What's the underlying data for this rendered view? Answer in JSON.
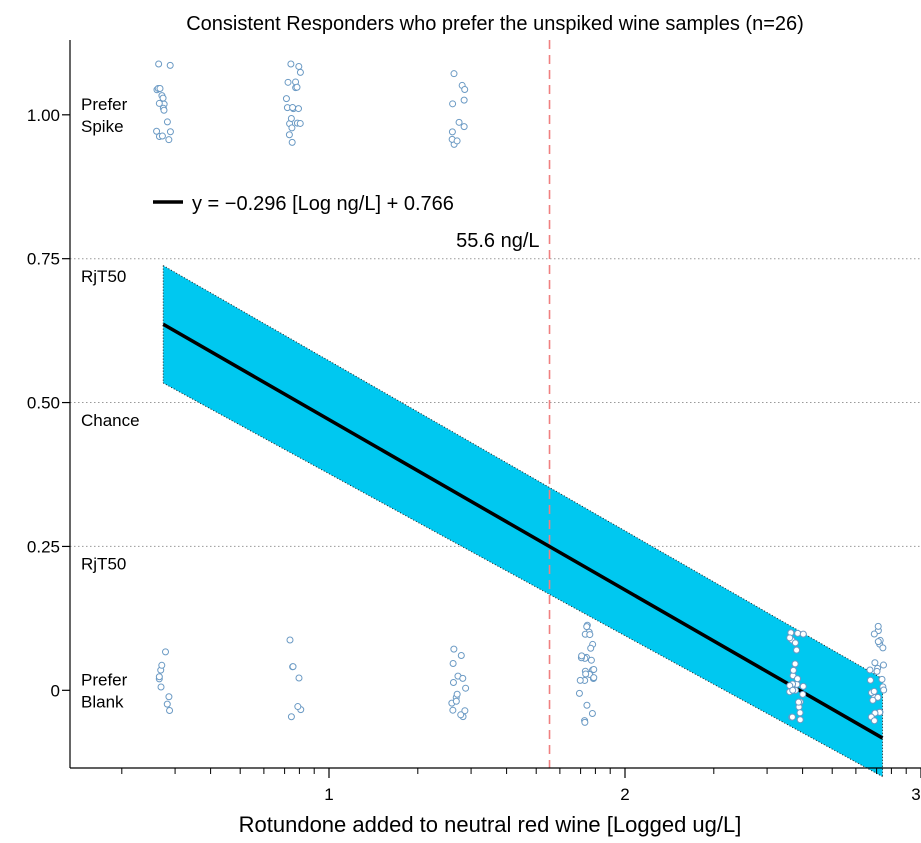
{
  "chart_data": {
    "type": "scatter",
    "title": "Consistent Responders who prefer the unspiked wine samples (n=26)",
    "xlabel": "Rotundone added to neutral red wine [Logged ug/L]",
    "ylabel": "",
    "xlim": [
      0.125,
      3.0
    ],
    "ylim": [
      -0.135,
      1.13
    ],
    "x_ticks": [
      1,
      2,
      3
    ],
    "x_tick_labels": [
      "1",
      "2",
      "3"
    ],
    "y_ticks": [
      1.0,
      0.75,
      0.5,
      0.25,
      0
    ],
    "y_tick_labels": [
      "1.00",
      "0.75",
      "0.50",
      "0.25",
      "0"
    ],
    "gridlines_y": [
      0.75,
      0.5,
      0.25
    ],
    "region_labels": [
      {
        "lines": [
          "Prefer",
          "Spike"
        ],
        "y": 1.0
      },
      {
        "lines": [
          "RjT50"
        ],
        "y": 0.72
      },
      {
        "lines": [
          "Chance"
        ],
        "y": 0.47
      },
      {
        "lines": [
          "RjT50"
        ],
        "y": 0.22
      },
      {
        "lines": [
          "Prefer",
          "Blank"
        ],
        "y": 0.0
      }
    ],
    "regression": {
      "equation": "y = −0.296 [Log ng/L] + 0.766",
      "x": [
        0.44,
        2.87
      ],
      "y": [
        0.636,
        -0.083
      ],
      "ci_upper": [
        0.738,
        0.02
      ],
      "ci_lower": [
        0.534,
        -0.15
      ],
      "line_color": "#000000",
      "band_color": "#00c8f0"
    },
    "threshold": {
      "x": 1.745,
      "label": "55.6 ng/L",
      "color": "#f08080"
    },
    "point_color": "#6b9ac4",
    "point_groups": [
      {
        "x": 0.44,
        "level": 1,
        "n": 17
      },
      {
        "x": 0.44,
        "level": 0,
        "n": 9
      },
      {
        "x": 0.88,
        "level": 1,
        "n": 19
      },
      {
        "x": 0.88,
        "level": 0,
        "n": 7
      },
      {
        "x": 1.44,
        "level": 1,
        "n": 11
      },
      {
        "x": 1.44,
        "level": 0,
        "n": 15
      },
      {
        "x": 1.87,
        "level": 1,
        "n": 0
      },
      {
        "x": 1.87,
        "level": 0,
        "n": 26
      },
      {
        "x": 2.58,
        "level": 1,
        "n": 0
      },
      {
        "x": 2.58,
        "level": 0,
        "n": 26
      },
      {
        "x": 2.85,
        "level": 1,
        "n": 0
      },
      {
        "x": 2.85,
        "level": 0,
        "n": 26
      }
    ]
  }
}
